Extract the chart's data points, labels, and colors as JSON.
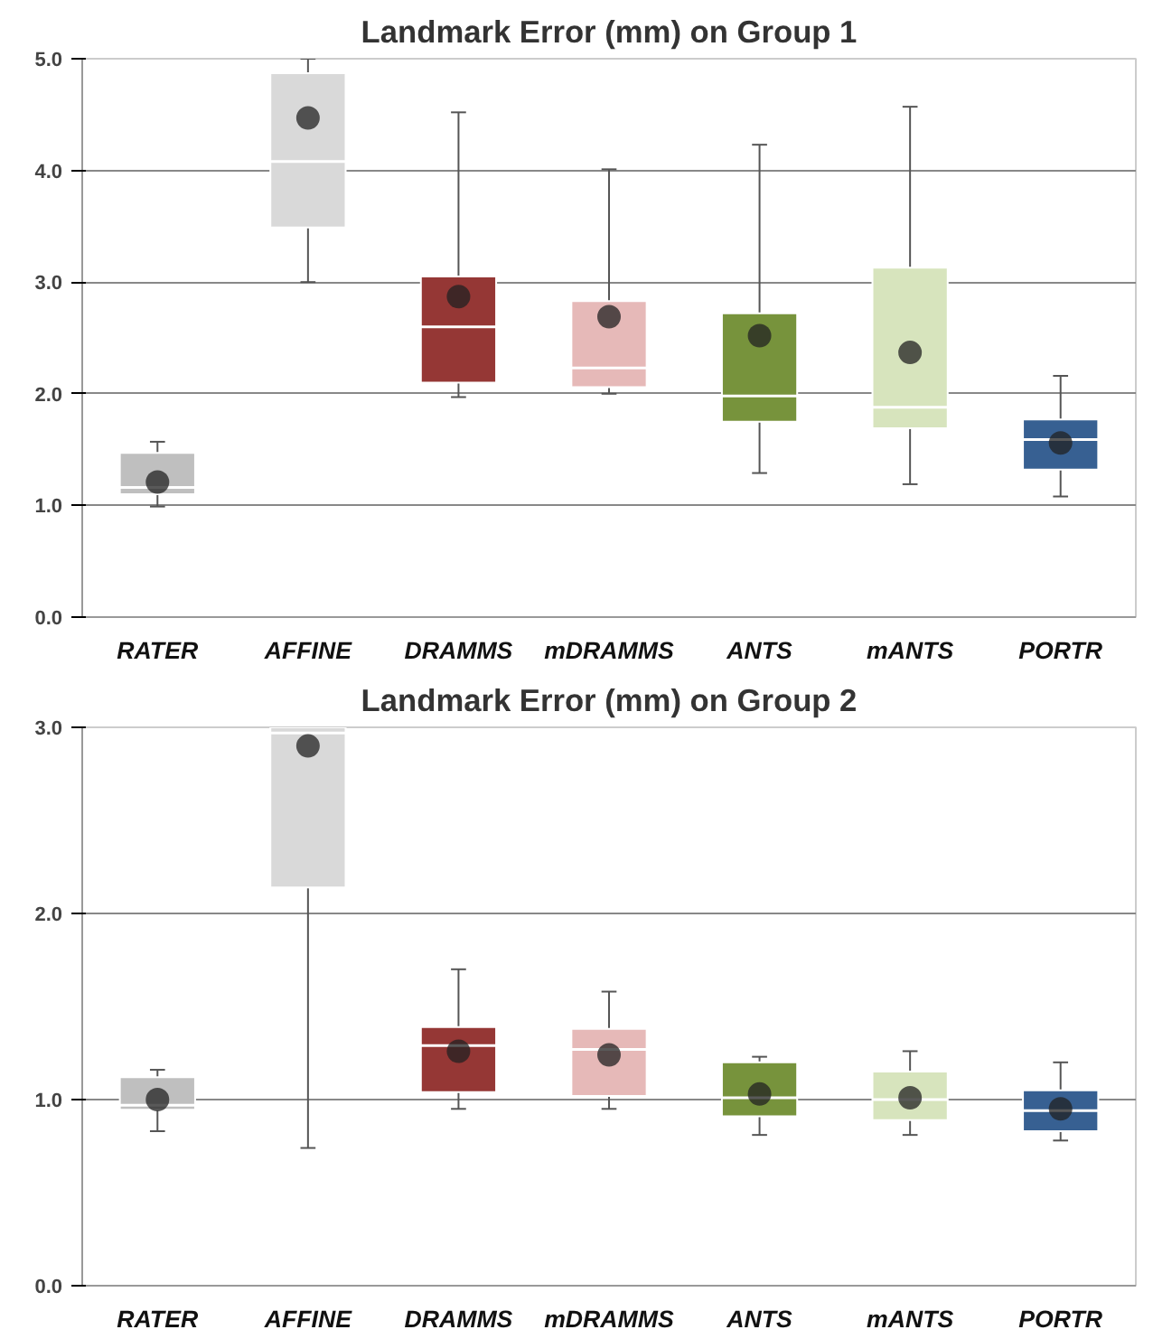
{
  "chart_data": [
    {
      "type": "box",
      "title": "Landmark Error (mm) on Group 1",
      "categories": [
        "RATER",
        "AFFINE",
        "DRAMMS",
        "mDRAMMS",
        "ANTS",
        "mANTS",
        "PORTR"
      ],
      "colors": [
        "#bfbfbf",
        "#d9d9d9",
        "#953735",
        "#e6b9b8",
        "#77933c",
        "#d7e4bd",
        "#376092"
      ],
      "boxes": [
        {
          "low": 0.99,
          "q1": 1.1,
          "median": 1.16,
          "q3": 1.47,
          "high": 1.57,
          "mean": 1.21
        },
        {
          "low": 3.0,
          "q1": 3.49,
          "median": 4.08,
          "q3": 4.87,
          "high": 5.0,
          "mean": 4.47
        },
        {
          "low": 1.97,
          "q1": 2.1,
          "median": 2.6,
          "q3": 3.05,
          "high": 4.52,
          "mean": 2.87
        },
        {
          "low": 2.0,
          "q1": 2.06,
          "median": 2.23,
          "q3": 2.83,
          "high": 4.01,
          "mean": 2.69
        },
        {
          "low": 1.29,
          "q1": 1.75,
          "median": 1.98,
          "q3": 2.72,
          "high": 4.23,
          "mean": 2.52
        },
        {
          "low": 1.19,
          "q1": 1.69,
          "median": 1.88,
          "q3": 3.13,
          "high": 4.57,
          "mean": 2.37
        },
        {
          "low": 1.08,
          "q1": 1.32,
          "median": 1.59,
          "q3": 1.77,
          "high": 2.16,
          "mean": 1.56
        }
      ],
      "ylim": [
        0,
        5
      ],
      "yticks": [
        {
          "value": 0,
          "label": "0.0"
        },
        {
          "value": 1,
          "label": "1.0"
        },
        {
          "value": 2,
          "label": "2.0"
        },
        {
          "value": 3,
          "label": "3.0"
        },
        {
          "value": 4,
          "label": "4.0"
        },
        {
          "value": 5,
          "label": "5.0"
        }
      ],
      "grid": "y"
    },
    {
      "type": "box",
      "title": "Landmark Error (mm) on Group 2",
      "categories": [
        "RATER",
        "AFFINE",
        "DRAMMS",
        "mDRAMMS",
        "ANTS",
        "mANTS",
        "PORTR"
      ],
      "colors": [
        "#bfbfbf",
        "#d9d9d9",
        "#953735",
        "#e6b9b8",
        "#77933c",
        "#d7e4bd",
        "#376092"
      ],
      "boxes": [
        {
          "low": 0.83,
          "q1": 0.945,
          "median": 0.97,
          "q3": 1.12,
          "high": 1.16,
          "mean": 1.0
        },
        {
          "low": 0.74,
          "q1": 2.14,
          "median": 2.97,
          "q3": 3.0,
          "high": 3.0,
          "mean": 2.9
        },
        {
          "low": 0.95,
          "q1": 1.04,
          "median": 1.29,
          "q3": 1.39,
          "high": 1.7,
          "mean": 1.26
        },
        {
          "low": 0.95,
          "q1": 1.02,
          "median": 1.27,
          "q3": 1.38,
          "high": 1.58,
          "mean": 1.24
        },
        {
          "low": 0.81,
          "q1": 0.91,
          "median": 1.01,
          "q3": 1.2,
          "high": 1.23,
          "mean": 1.03
        },
        {
          "low": 0.81,
          "q1": 0.89,
          "median": 1.0,
          "q3": 1.15,
          "high": 1.26,
          "mean": 1.01
        },
        {
          "low": 0.78,
          "q1": 0.83,
          "median": 0.94,
          "q3": 1.05,
          "high": 1.2,
          "mean": 0.95
        }
      ],
      "ylim": [
        0,
        3
      ],
      "yticks": [
        {
          "value": 0,
          "label": "0.0"
        },
        {
          "value": 1,
          "label": "1.0"
        },
        {
          "value": 2,
          "label": "2.0"
        },
        {
          "value": 3,
          "label": "3.0"
        }
      ],
      "grid": "y"
    }
  ]
}
